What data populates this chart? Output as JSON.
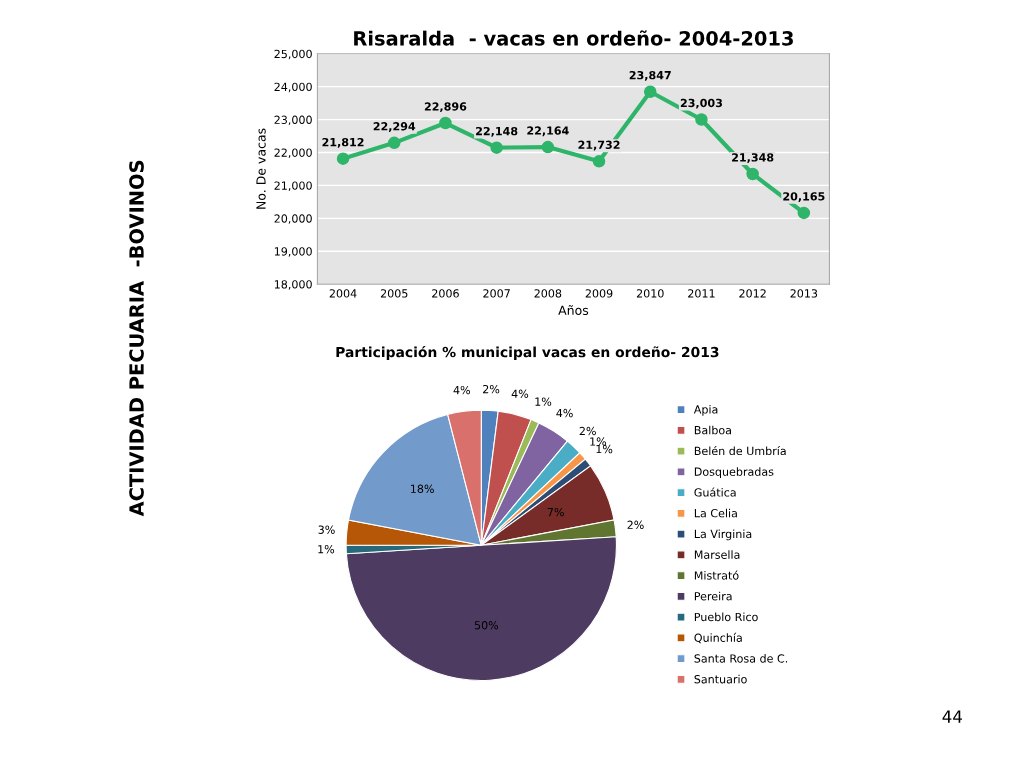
{
  "chart_data": [
    {
      "type": "line",
      "title": "Risaralda  - vacas en ordeño- 2004-2013",
      "xlabel": "Años",
      "ylabel": "No. De vacas",
      "categories": [
        "2004",
        "2005",
        "2006",
        "2007",
        "2008",
        "2009",
        "2010",
        "2011",
        "2012",
        "2013"
      ],
      "series": [
        {
          "color": "#2fb56a",
          "values": [
            21812,
            22294,
            22896,
            22148,
            22164,
            21732,
            23847,
            23003,
            21348,
            20165
          ],
          "value_labels": [
            "21,812",
            "22,294",
            "22,896",
            "22,148",
            "22,164",
            "21,732",
            "23,847",
            "23,003",
            "21,348",
            "20,165"
          ]
        }
      ],
      "ylim": [
        18000,
        25000
      ],
      "yticks": [
        {
          "value": 18000,
          "label": "18,000"
        },
        {
          "value": 19000,
          "label": "19,000"
        },
        {
          "value": 20000,
          "label": "20,000"
        },
        {
          "value": 21000,
          "label": "21,000"
        },
        {
          "value": 22000,
          "label": "22,000"
        },
        {
          "value": 23000,
          "label": "23,000"
        },
        {
          "value": 24000,
          "label": "24,000"
        },
        {
          "value": 25000,
          "label": "25,000"
        }
      ],
      "grid": "y",
      "marker": "circle",
      "line_style": "solid",
      "legend": false,
      "annotations": [
        "ACTIVIDAD PECUARIA  -BOVINOS",
        "44"
      ]
    },
    {
      "type": "pie",
      "title": "Participación % municipal vacas en ordeño- 2013",
      "categories": [
        "Apia",
        "Balboa",
        "Belén de Umbría",
        "Dosquebradas",
        "Guática",
        "La Celia",
        "La Virginia",
        "Marsella",
        "Mistrató",
        "Pereira",
        "Pueblo Rico",
        "Quinchía",
        "Santa Rosa de C.",
        "Santuario"
      ],
      "values": [
        2,
        4,
        1,
        4,
        2,
        1,
        1,
        7,
        2,
        50,
        1,
        3,
        18,
        4
      ],
      "colors": [
        "#4f81bd",
        "#c0504d",
        "#9bbb59",
        "#8064a2",
        "#4bacc6",
        "#f79646",
        "#2c4d75",
        "#772c2a",
        "#5f7530",
        "#4d3b62",
        "#276a7c",
        "#b65708",
        "#729aca",
        "#d9706b"
      ],
      "value_labels": [
        "2%",
        "4%",
        "1%",
        "4%",
        "2%",
        "1%",
        "1%",
        "7%",
        "2%",
        "50%",
        "1%",
        "3%",
        "18%",
        "4%"
      ],
      "legend": "right"
    }
  ]
}
